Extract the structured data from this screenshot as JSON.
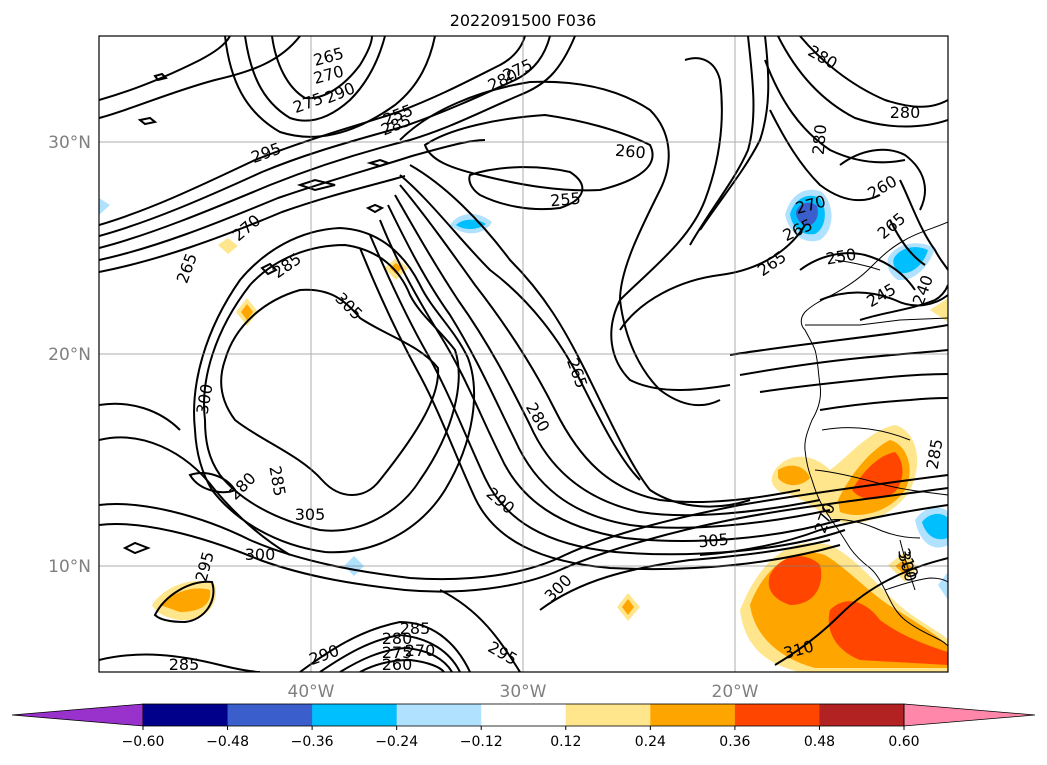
{
  "title": "2022091500 F036",
  "lat_labels": [
    "30°N",
    "20°N",
    "10°N"
  ],
  "lon_labels": [
    "40°W",
    "30°W",
    "20°W"
  ],
  "colorbar": {
    "ticks": [
      "−0.60",
      "−0.48",
      "−0.36",
      "−0.24",
      "−0.12",
      "0.12",
      "0.24",
      "0.36",
      "0.48",
      "0.60"
    ],
    "colors": [
      "#9932cc",
      "#00008b",
      "#3a5fcd",
      "#00bfff",
      "#b0e2ff",
      "#ffffff",
      "#ffe68c",
      "#ffa500",
      "#ff4500",
      "#b22222",
      "#ff88aa"
    ]
  },
  "contour_labels": [
    "265",
    "270",
    "275",
    "280",
    "285",
    "290",
    "295",
    "300",
    "305",
    "260",
    "255",
    "280",
    "285",
    "265",
    "270",
    "265",
    "305",
    "300",
    "280",
    "285",
    "265",
    "280",
    "290",
    "305",
    "300",
    "310",
    "290",
    "285",
    "280",
    "275",
    "270",
    "260",
    "295",
    "285",
    "295",
    "255",
    "250",
    "245",
    "240",
    "270",
    "265",
    "260",
    "280",
    "310",
    "270",
    "265",
    "275",
    "280",
    "300",
    "285"
  ]
}
